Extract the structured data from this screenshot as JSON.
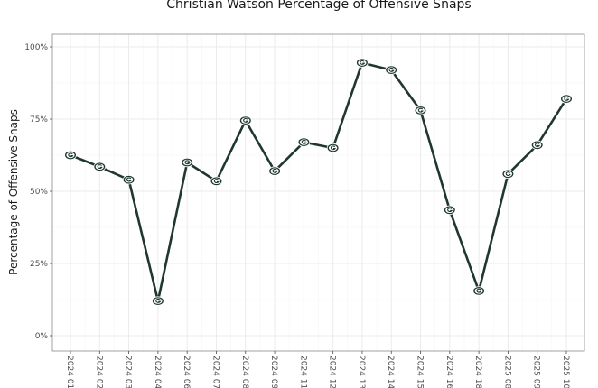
{
  "chart_data": {
    "type": "line",
    "title": "Christian Watson Percentage of Offensive Snaps",
    "xlabel": "",
    "ylabel": "Percentage of Offensive Snaps",
    "ylim": [
      0,
      100
    ],
    "yticks": [
      0,
      25,
      50,
      75,
      100
    ],
    "ytick_labels": [
      "0%",
      "25%",
      "50%",
      "75%",
      "100%"
    ],
    "grid": true,
    "marker": "team-logo-G",
    "colors": {
      "line": "#203731",
      "marker_fill": "#ffffff",
      "marker_accent": "#203731"
    },
    "categories": [
      "2024 01",
      "2024 02",
      "2024 03",
      "2024 04",
      "2024 06",
      "2024 07",
      "2024 08",
      "2024 09",
      "2024 11",
      "2024 12",
      "2024 13",
      "2024 14",
      "2024 15",
      "2024 16",
      "2024 18",
      "2025 08",
      "2025 09",
      "2025 10"
    ],
    "series": [
      {
        "name": "Christian Watson",
        "values": [
          62.5,
          58.5,
          54,
          12,
          60,
          53.5,
          74.5,
          57,
          67,
          65,
          94.5,
          92,
          78,
          43.5,
          15.5,
          56,
          66,
          82
        ]
      }
    ]
  }
}
